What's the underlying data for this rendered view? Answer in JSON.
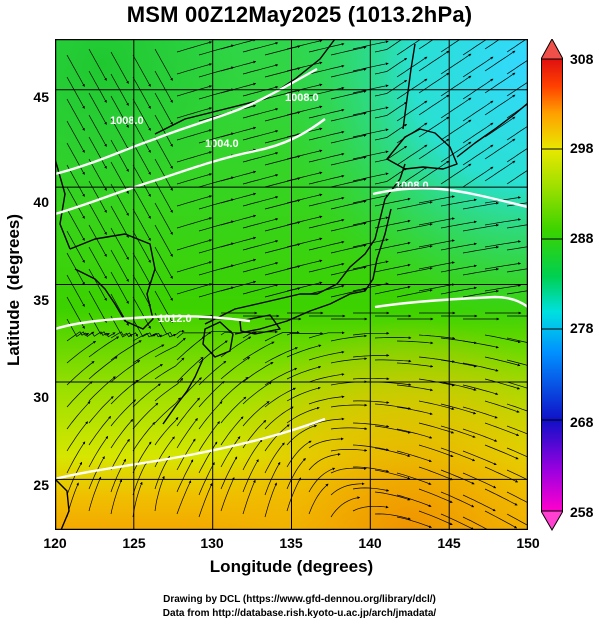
{
  "title": "MSM 00Z12May2025 (1013.2hPa)",
  "axes": {
    "xlabel": "Longitude (degrees)",
    "ylabel": "Latitude  (degrees)",
    "xticks": [
      "120",
      "125",
      "130",
      "135",
      "140",
      "145",
      "150"
    ],
    "yticks": [
      "45",
      "40",
      "35",
      "30",
      "25"
    ]
  },
  "colorbar": {
    "labels": [
      "308",
      "298",
      "288",
      "278",
      "268",
      "258"
    ],
    "range": [
      258,
      308
    ],
    "colors": [
      "#ff00cc",
      "#9b00e0",
      "#1010c8",
      "#0090ff",
      "#00e0e0",
      "#00d050",
      "#3ad300",
      "#a0e000",
      "#e8e800",
      "#ffa000",
      "#ff4000",
      "#e01010"
    ]
  },
  "contours": {
    "labels": [
      "1004.0",
      "1008.0",
      "1008.0",
      "1008.0",
      "1012.0"
    ]
  },
  "credits": {
    "line1": "Drawing by DCL (https://www.gfd-dennou.org/library/dcl/)",
    "line2": "Data from http://database.rish.kyoto-u.ac.jp/arch/jmadata/"
  },
  "chart_data": {
    "type": "map",
    "title": "MSM 00Z12May2025 (1013.2hPa)",
    "xlabel": "Longitude (degrees)",
    "ylabel": "Latitude  (degrees)",
    "xlim": [
      120,
      150
    ],
    "ylim": [
      22.4,
      47.6
    ],
    "x_ticks": [
      120,
      125,
      130,
      135,
      140,
      145,
      150
    ],
    "y_ticks": [
      25,
      30,
      35,
      40,
      45
    ],
    "grid": true,
    "colorbar": {
      "min": 258,
      "max": 308,
      "ticks": [
        258,
        268,
        278,
        288,
        298,
        308
      ],
      "position": "right"
    },
    "contour_levels": [
      1004.0,
      1008.0,
      1012.0
    ]
  }
}
